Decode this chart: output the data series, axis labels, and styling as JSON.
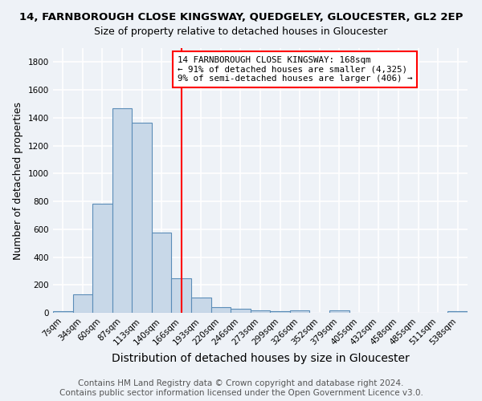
{
  "title": "14, FARNBOROUGH CLOSE KINGSWAY, QUEDGELEY, GLOUCESTER, GL2 2EP",
  "subtitle": "Size of property relative to detached houses in Gloucester",
  "xlabel": "Distribution of detached houses by size in Gloucester",
  "ylabel": "Number of detached properties",
  "bar_labels": [
    "7sqm",
    "34sqm",
    "60sqm",
    "87sqm",
    "113sqm",
    "140sqm",
    "166sqm",
    "193sqm",
    "220sqm",
    "246sqm",
    "273sqm",
    "299sqm",
    "326sqm",
    "352sqm",
    "379sqm",
    "405sqm",
    "432sqm",
    "458sqm",
    "485sqm",
    "511sqm",
    "538sqm"
  ],
  "bar_values": [
    10,
    135,
    785,
    1470,
    1365,
    575,
    245,
    110,
    40,
    28,
    20,
    12,
    18,
    0,
    20,
    0,
    0,
    0,
    0,
    0,
    10
  ],
  "bar_color": "#c8d8e8",
  "bar_edge_color": "#5b8db8",
  "vline_x_idx": 6,
  "vline_color": "red",
  "annotation_line1": "14 FARNBOROUGH CLOSE KINGSWAY: 168sqm",
  "annotation_line2": "← 91% of detached houses are smaller (4,325)",
  "annotation_line3": "9% of semi-detached houses are larger (406) →",
  "annotation_box_color": "white",
  "annotation_box_edge_color": "red",
  "ylim": [
    0,
    1900
  ],
  "yticks": [
    0,
    200,
    400,
    600,
    800,
    1000,
    1200,
    1400,
    1600,
    1800
  ],
  "footer_line1": "Contains HM Land Registry data © Crown copyright and database right 2024.",
  "footer_line2": "Contains public sector information licensed under the Open Government Licence v3.0.",
  "background_color": "#eef2f7",
  "grid_color": "white",
  "title_fontsize": 9.5,
  "xlabel_fontsize": 10,
  "ylabel_fontsize": 9,
  "tick_fontsize": 7.5,
  "annotation_fontsize": 7.8,
  "footer_fontsize": 7.5
}
